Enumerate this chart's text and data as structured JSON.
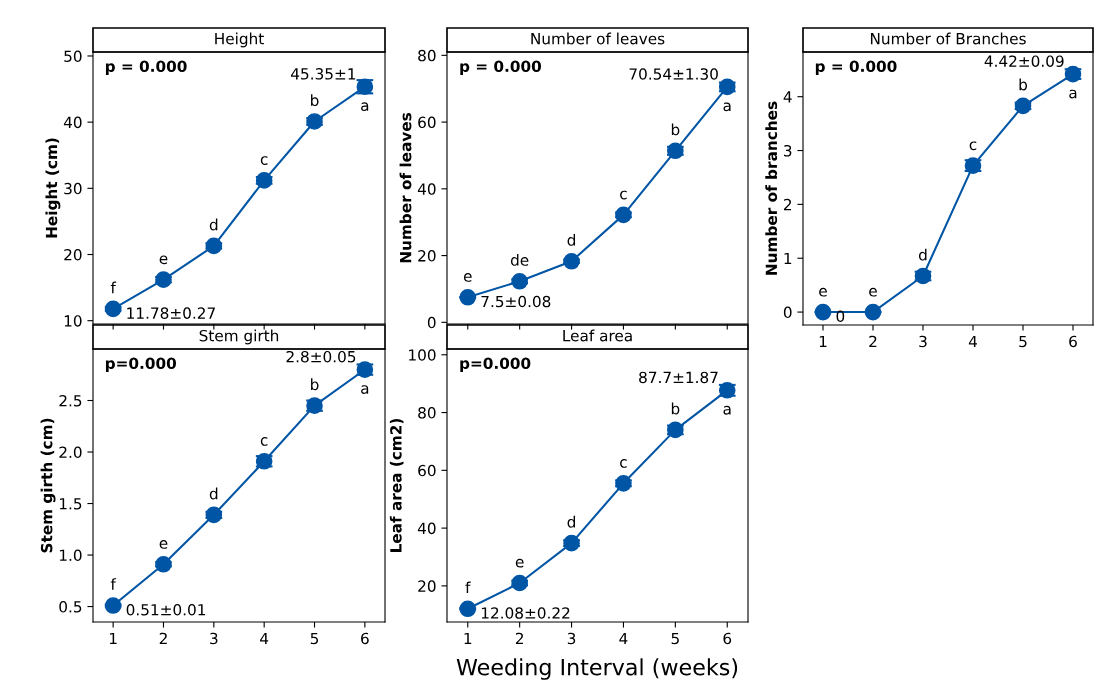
{
  "chart_data": [
    {
      "type": "line",
      "title": "Height",
      "ylabel": "Height (cm)",
      "x": [
        1,
        2,
        3,
        4,
        5,
        6
      ],
      "xlim": [
        0.6,
        6.4
      ],
      "xticks": [
        1,
        2,
        3,
        4,
        5,
        6
      ],
      "ylim": [
        9.5,
        50.6
      ],
      "yticks": [
        10,
        20,
        30,
        40,
        50
      ],
      "tick_labels": "y",
      "marker": "circle",
      "line_style": "solid",
      "series": [
        {
          "color": "#0055a5",
          "values": [
            11.78,
            16.2,
            21.3,
            31.2,
            40.1,
            45.35
          ],
          "errors": [
            0.27,
            0.4,
            0.4,
            0.5,
            0.5,
            1
          ],
          "value_labels": [
            "11.78±0.27",
            null,
            null,
            null,
            null,
            "45.35±1"
          ]
        }
      ],
      "annotations": [
        "p = 0.000",
        {
          "text": "f",
          "x": 1,
          "y": 11.78
        },
        {
          "text": "e",
          "x": 2,
          "y": 16.2
        },
        {
          "text": "d",
          "x": 3,
          "y": 21.3
        },
        {
          "text": "c",
          "x": 4,
          "y": 31.2
        },
        {
          "text": "b",
          "x": 5,
          "y": 40.1
        },
        {
          "text": "a",
          "x": 6,
          "y": 45.35
        }
      ]
    },
    {
      "type": "line",
      "title": "Number of leaves",
      "ylabel": "Number of leaves",
      "x": [
        1,
        2,
        3,
        4,
        5,
        6
      ],
      "xlim": [
        0.6,
        6.4
      ],
      "xticks": [
        1,
        2,
        3,
        4,
        5,
        6
      ],
      "ylim": [
        -0.5,
        81
      ],
      "yticks": [
        0,
        20,
        40,
        60,
        80
      ],
      "tick_labels": "y",
      "marker": "circle",
      "line_style": "solid",
      "series": [
        {
          "color": "#0055a5",
          "values": [
            7.5,
            12.3,
            18.3,
            32.2,
            51.4,
            70.54
          ],
          "errors": [
            0.08,
            0.6,
            0.5,
            0.7,
            1.2,
            1.3
          ],
          "value_labels": [
            "7.5±0.08",
            null,
            null,
            null,
            null,
            "70.54±1.30"
          ]
        }
      ],
      "annotations": [
        "p = 0.000",
        {
          "text": "e",
          "x": 1,
          "y": 7.5
        },
        {
          "text": "de",
          "x": 2,
          "y": 12.3
        },
        {
          "text": "d",
          "x": 3,
          "y": 18.3
        },
        {
          "text": "c",
          "x": 4,
          "y": 32.2
        },
        {
          "text": "b",
          "x": 5,
          "y": 51.4
        },
        {
          "text": "a",
          "x": 6,
          "y": 70.54
        }
      ]
    },
    {
      "type": "line",
      "title": "Number of Branches",
      "ylabel": "Number of branches",
      "x": [
        1,
        2,
        3,
        4,
        5,
        6
      ],
      "xlim": [
        0.6,
        6.4
      ],
      "xticks": [
        1,
        2,
        3,
        4,
        5,
        6
      ],
      "ylim": [
        -0.24,
        4.83
      ],
      "yticks": [
        0,
        1,
        2,
        3,
        4
      ],
      "marker": "circle",
      "line_style": "solid",
      "series": [
        {
          "color": "#0055a5",
          "values": [
            0,
            0,
            0.67,
            2.72,
            3.83,
            4.42
          ],
          "errors": [
            0,
            0,
            0.08,
            0.1,
            0.06,
            0.09
          ],
          "value_labels": [
            "0",
            null,
            null,
            null,
            null,
            "4.42±0.09"
          ]
        }
      ],
      "annotations": [
        "p = 0.000",
        {
          "text": "e",
          "x": 1,
          "y": 0
        },
        {
          "text": "e",
          "x": 2,
          "y": 0
        },
        {
          "text": "d",
          "x": 3,
          "y": 0.67
        },
        {
          "text": "c",
          "x": 4,
          "y": 2.72
        },
        {
          "text": "b",
          "x": 5,
          "y": 3.83
        },
        {
          "text": "a",
          "x": 6,
          "y": 4.42
        }
      ]
    },
    {
      "type": "line",
      "title": "Stem girth",
      "ylabel": "Stem girth (cm)",
      "x": [
        1,
        2,
        3,
        4,
        5,
        6
      ],
      "xlim": [
        0.6,
        6.4
      ],
      "xticks": [
        1,
        2,
        3,
        4,
        5,
        6
      ],
      "ylim": [
        0.35,
        3.0
      ],
      "yticks": [
        0.5,
        {
          "value": 1,
          "label": "1.0"
        },
        1.5,
        {
          "value": 2,
          "label": "2.0"
        },
        2.5
      ],
      "marker": "circle",
      "line_style": "solid",
      "series": [
        {
          "color": "#0055a5",
          "values": [
            0.51,
            0.91,
            1.39,
            1.91,
            2.45,
            2.8
          ],
          "errors": [
            0.01,
            0.02,
            0.03,
            0.05,
            0.05,
            0.05
          ],
          "value_labels": [
            "0.51±0.01",
            null,
            null,
            null,
            null,
            "2.8±0.05"
          ]
        }
      ],
      "annotations": [
        "p=0.000",
        {
          "text": "f",
          "x": 1,
          "y": 0.51
        },
        {
          "text": "e",
          "x": 2,
          "y": 0.91
        },
        {
          "text": "d",
          "x": 3,
          "y": 1.39
        },
        {
          "text": "c",
          "x": 4,
          "y": 1.91
        },
        {
          "text": "b",
          "x": 5,
          "y": 2.45
        },
        {
          "text": "a",
          "x": 6,
          "y": 2.8
        }
      ]
    },
    {
      "type": "line",
      "title": "Leaf area",
      "ylabel": "Leaf area (cm2)",
      "xlabel": "Weeding Interval (weeks)",
      "x": [
        1,
        2,
        3,
        4,
        5,
        6
      ],
      "xlim": [
        0.6,
        6.4
      ],
      "xticks": [
        1,
        2,
        3,
        4,
        5,
        6
      ],
      "ylim": [
        7.5,
        102
      ],
      "yticks": [
        20,
        40,
        60,
        80,
        100
      ],
      "marker": "circle",
      "line_style": "solid",
      "series": [
        {
          "color": "#0055a5",
          "values": [
            12.08,
            21,
            34.8,
            55.5,
            74,
            87.7
          ],
          "errors": [
            0.22,
            0.8,
            1.0,
            1.0,
            1.5,
            1.87
          ],
          "value_labels": [
            "12.08±0.22",
            null,
            null,
            null,
            null,
            "87.7±1.87"
          ]
        }
      ],
      "annotations": [
        "p=0.000",
        {
          "text": "f",
          "x": 1,
          "y": 12.08
        },
        {
          "text": "e",
          "x": 2,
          "y": 21
        },
        {
          "text": "d",
          "x": 3,
          "y": 34.8
        },
        {
          "text": "c",
          "x": 4,
          "y": 55.5
        },
        {
          "text": "b",
          "x": 5,
          "y": 74
        },
        {
          "text": "a",
          "x": 6,
          "y": 87.7
        }
      ]
    }
  ]
}
